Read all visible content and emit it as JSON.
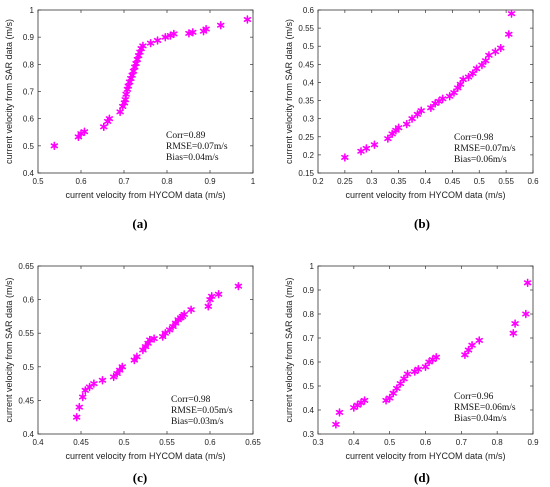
{
  "marker_color": "#ff00ff",
  "chart_data": [
    {
      "type": "scatter",
      "panel_label": "(a)",
      "xlabel": "current velocity from HYCOM data (m/s)",
      "ylabel": "current velocity from SAR data (m/s)",
      "xlim": [
        0.5,
        1.0
      ],
      "ylim": [
        0.4,
        1.0
      ],
      "xticks": [
        "0.5",
        "0.6",
        "0.7",
        "0.8",
        "0.9",
        "1"
      ],
      "yticks": [
        "0.4",
        "0.5",
        "0.6",
        "0.7",
        "0.8",
        "0.9",
        "1"
      ],
      "stats": [
        "Corr=0.89",
        "RMSE=0.07m/s",
        "Bias=0.04m/s"
      ],
      "x": [
        0.538,
        0.594,
        0.6,
        0.608,
        0.653,
        0.662,
        0.666,
        0.691,
        0.697,
        0.701,
        0.703,
        0.705,
        0.708,
        0.71,
        0.713,
        0.716,
        0.719,
        0.722,
        0.725,
        0.728,
        0.731,
        0.734,
        0.737,
        0.74,
        0.744,
        0.762,
        0.778,
        0.796,
        0.808,
        0.816,
        0.851,
        0.86,
        0.885,
        0.891,
        0.925,
        0.987
      ],
      "y": [
        0.5,
        0.533,
        0.545,
        0.552,
        0.57,
        0.59,
        0.6,
        0.625,
        0.645,
        0.658,
        0.67,
        0.69,
        0.708,
        0.72,
        0.735,
        0.748,
        0.76,
        0.775,
        0.79,
        0.803,
        0.818,
        0.832,
        0.845,
        0.858,
        0.868,
        0.878,
        0.888,
        0.9,
        0.906,
        0.912,
        0.914,
        0.918,
        0.922,
        0.93,
        0.944,
        0.965
      ]
    },
    {
      "type": "scatter",
      "panel_label": "(b)",
      "xlabel": "current velocity from HYCOM data (m/s)",
      "ylabel": "current velocity from SAR data (m/s)",
      "xlim": [
        0.2,
        0.6
      ],
      "ylim": [
        0.15,
        0.6
      ],
      "xticks": [
        "0.2",
        "0.25",
        "0.3",
        "0.35",
        "0.4",
        "0.45",
        "0.5",
        "0.55",
        "0.6"
      ],
      "yticks": [
        "0.15",
        "0.2",
        "0.25",
        "0.3",
        "0.35",
        "0.4",
        "0.45",
        "0.5",
        "0.55",
        "0.6"
      ],
      "stats": [
        "Corr=0.98",
        "RMSE=0.07m/s",
        "Bias=0.06m/s"
      ],
      "x": [
        0.25,
        0.28,
        0.29,
        0.305,
        0.33,
        0.338,
        0.345,
        0.35,
        0.365,
        0.375,
        0.385,
        0.392,
        0.41,
        0.418,
        0.425,
        0.432,
        0.445,
        0.453,
        0.46,
        0.465,
        0.47,
        0.48,
        0.488,
        0.495,
        0.505,
        0.512,
        0.518,
        0.53,
        0.54,
        0.555,
        0.56
      ],
      "y": [
        0.193,
        0.21,
        0.218,
        0.228,
        0.245,
        0.258,
        0.268,
        0.275,
        0.285,
        0.3,
        0.312,
        0.322,
        0.33,
        0.342,
        0.348,
        0.355,
        0.362,
        0.372,
        0.385,
        0.395,
        0.408,
        0.415,
        0.425,
        0.438,
        0.448,
        0.46,
        0.475,
        0.485,
        0.495,
        0.533,
        0.59
      ]
    },
    {
      "type": "scatter",
      "panel_label": "(c)",
      "xlabel": "current velocity from HYCOM data (m/s)",
      "ylabel": "current velocity from SAR data (m/s)",
      "xlim": [
        0.4,
        0.65
      ],
      "ylim": [
        0.4,
        0.65
      ],
      "xticks": [
        "0.4",
        "0.45",
        "0.5",
        "0.55",
        "0.6",
        "0.65"
      ],
      "yticks": [
        "0.4",
        "0.45",
        "0.5",
        "0.55",
        "0.6",
        "0.65"
      ],
      "stats": [
        "Corr=0.98",
        "RMSE=0.05m/s",
        "Bias=0.03m/s"
      ],
      "x": [
        0.445,
        0.448,
        0.452,
        0.455,
        0.46,
        0.465,
        0.475,
        0.488,
        0.492,
        0.495,
        0.498,
        0.512,
        0.515,
        0.522,
        0.525,
        0.528,
        0.53,
        0.535,
        0.545,
        0.548,
        0.553,
        0.557,
        0.56,
        0.563,
        0.566,
        0.568,
        0.57,
        0.578,
        0.598,
        0.6,
        0.602,
        0.61,
        0.633
      ],
      "y": [
        0.425,
        0.44,
        0.455,
        0.465,
        0.47,
        0.475,
        0.48,
        0.485,
        0.49,
        0.495,
        0.5,
        0.51,
        0.515,
        0.525,
        0.53,
        0.535,
        0.54,
        0.542,
        0.545,
        0.55,
        0.555,
        0.56,
        0.565,
        0.57,
        0.573,
        0.575,
        0.578,
        0.585,
        0.59,
        0.6,
        0.605,
        0.608,
        0.62
      ]
    },
    {
      "type": "scatter",
      "panel_label": "(d)",
      "xlabel": "current velocity from HYCOM data (m/s)",
      "ylabel": "current velocity from SAR data (m/s)",
      "xlim": [
        0.3,
        0.9
      ],
      "ylim": [
        0.3,
        1.0
      ],
      "xticks": [
        "0.3",
        "0.4",
        "0.5",
        "0.6",
        "0.7",
        "0.8",
        "0.9"
      ],
      "yticks": [
        "0.3",
        "0.4",
        "0.5",
        "0.6",
        "0.7",
        "0.8",
        "0.9",
        "1"
      ],
      "stats": [
        "Corr=0.96",
        "RMSE=0.06m/s",
        "Bias=0.04m/s"
      ],
      "x": [
        0.35,
        0.36,
        0.4,
        0.41,
        0.42,
        0.43,
        0.49,
        0.5,
        0.51,
        0.52,
        0.53,
        0.54,
        0.55,
        0.57,
        0.58,
        0.6,
        0.61,
        0.62,
        0.63,
        0.71,
        0.72,
        0.73,
        0.75,
        0.845,
        0.85,
        0.88,
        0.885
      ],
      "y": [
        0.34,
        0.39,
        0.41,
        0.42,
        0.43,
        0.44,
        0.44,
        0.45,
        0.47,
        0.49,
        0.51,
        0.53,
        0.55,
        0.56,
        0.57,
        0.58,
        0.6,
        0.61,
        0.62,
        0.63,
        0.65,
        0.67,
        0.69,
        0.72,
        0.76,
        0.8,
        0.93
      ]
    }
  ]
}
